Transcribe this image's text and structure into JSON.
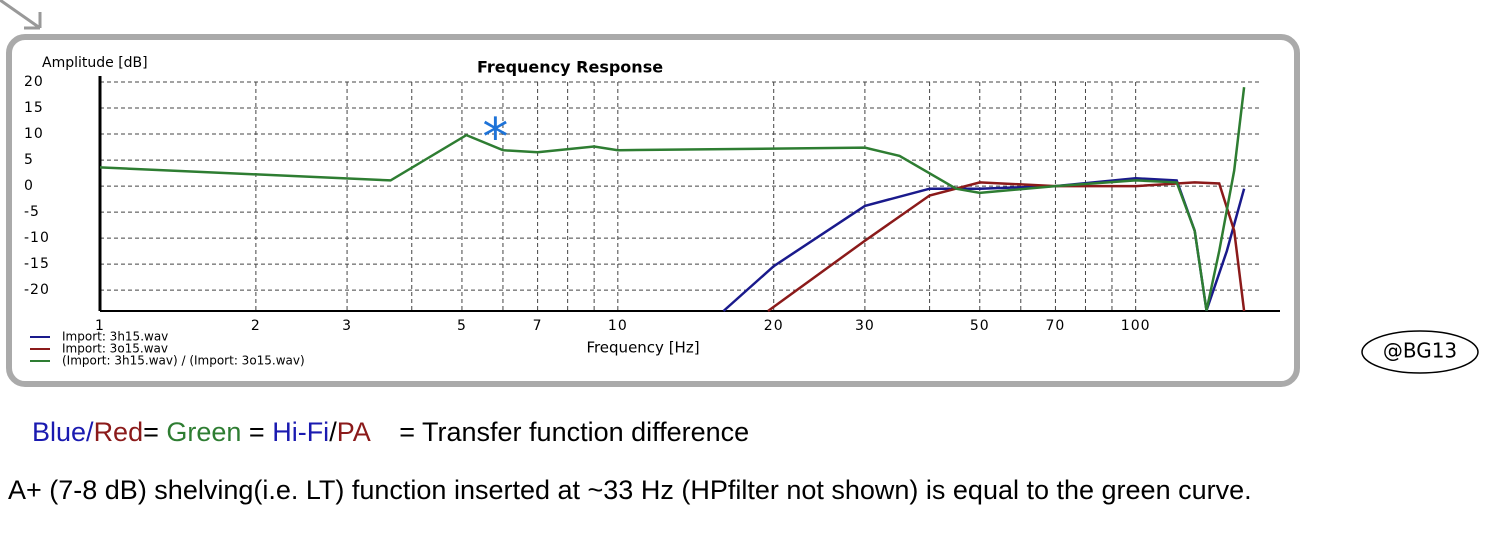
{
  "chart_data": {
    "type": "line",
    "title": "Frequency Response",
    "y_label": "Amplitude [dB]",
    "x_label": "Frequency [Hz]",
    "xlog": true,
    "xlim": [
      1,
      190
    ],
    "ylim": [
      -24,
      20
    ],
    "xticks": [
      1,
      2,
      3,
      5,
      7,
      10,
      20,
      30,
      50,
      70,
      100
    ],
    "xgrid_minor": [
      4,
      6,
      8,
      9,
      40,
      60,
      80,
      90
    ],
    "yticks": [
      20,
      15,
      10,
      5,
      0,
      -5,
      -10,
      -15,
      -20
    ],
    "grid": true,
    "series": [
      {
        "name": "Import: 3h15.wav",
        "color": "#1a1a8c",
        "x": [
          16,
          20,
          30,
          40,
          50,
          70,
          100,
          120,
          130,
          137,
          150,
          162
        ],
        "values": [
          -24,
          -15.4,
          -3.8,
          -0.5,
          -0.5,
          0,
          1.5,
          1.1,
          -8.6,
          -23.9,
          -12.5,
          -0.5
        ]
      },
      {
        "name": "Import: 3o15.wav",
        "color": "#8b1a1a",
        "x": [
          19.5,
          30,
          40,
          50,
          70,
          100,
          130,
          145,
          155,
          162
        ],
        "values": [
          -24,
          -10.5,
          -1.8,
          0.7,
          0,
          0,
          0.7,
          0.5,
          -8.6,
          -24
        ]
      },
      {
        "name": "(Import: 3h15.wav) / (Import: 3o15.wav)",
        "color": "#2e7d32",
        "x": [
          1,
          3.64,
          5.1,
          6,
          7,
          9,
          10,
          20,
          30,
          35,
          45,
          50,
          70,
          100,
          120,
          130,
          137,
          145,
          155,
          162
        ],
        "values": [
          3.6,
          1.1,
          9.8,
          6.9,
          6.5,
          7.6,
          6.9,
          7.2,
          7.4,
          5.8,
          -0.5,
          -1.3,
          0,
          1.1,
          0.7,
          -8.6,
          -23.9,
          -12.5,
          3,
          19
        ]
      }
    ],
    "annotation": {
      "text": "*",
      "x": 5.8,
      "y": 11,
      "color": "#1e73d8"
    }
  },
  "badge": "@BG13",
  "caption": [
    {
      "text": "Blue",
      "color": "#1a1ab0"
    },
    {
      "text": "/",
      "color": "#1a1ab0"
    },
    {
      "text": "Red",
      "color": "#8b1a1a"
    },
    {
      "text": "= ",
      "color": "#000000"
    },
    {
      "text": "Green",
      "color": "#2e7d32"
    },
    {
      "text": " = ",
      "color": "#000000"
    },
    {
      "text": "Hi-Fi",
      "color": "#1a1ab0"
    },
    {
      "text": "/",
      "color": "#000000"
    },
    {
      "text": "PA",
      "color": "#8b1a1a"
    },
    {
      "text": "    = Transfer function difference",
      "color": "#000000"
    }
  ],
  "note": "A+ (7-8 dB) shelving(i.e. LT) function inserted at ~33 Hz (HPfilter not shown) is equal to the green curve."
}
